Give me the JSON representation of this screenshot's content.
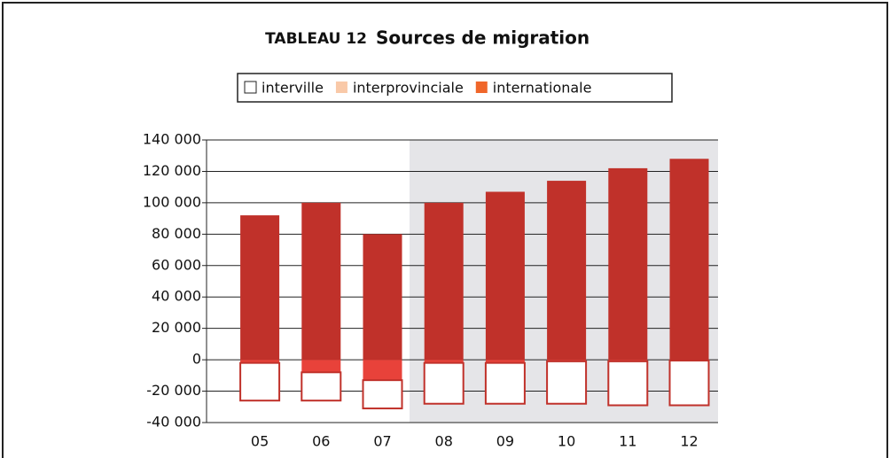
{
  "chart_data": {
    "type": "stacked_bar",
    "label": "TABLEAU 12",
    "title": "Sources de migration",
    "categories": [
      "05",
      "06",
      "07",
      "08",
      "09",
      "10",
      "11",
      "12"
    ],
    "series": [
      {
        "name": "interville",
        "color": "#ffffff",
        "legend_color": "#ffffff",
        "values": [
          -24000,
          -18000,
          -18000,
          -26000,
          -26000,
          -27000,
          -28000,
          -28500
        ]
      },
      {
        "name": "interprovinciale",
        "color": "#e8423a",
        "legend_color": "#f9c9a8",
        "values": [
          -2000,
          -8000,
          -13000,
          -2000,
          -2000,
          -1000,
          -1000,
          -500
        ]
      },
      {
        "name": "internationale",
        "color": "#c0312a",
        "legend_color": "#f0662a",
        "values": [
          92000,
          100000,
          80000,
          100000,
          107000,
          114000,
          122000,
          128000
        ]
      }
    ],
    "ylim": [
      -40000,
      140000
    ],
    "yticks": [
      {
        "value": -40000,
        "label": "-40 000"
      },
      {
        "value": -20000,
        "label": "-20 000"
      },
      0,
      {
        "value": 20000,
        "label": "20 000"
      },
      {
        "value": 40000,
        "label": "40 000"
      },
      {
        "value": 60000,
        "label": "60 000"
      },
      {
        "value": 80000,
        "label": "80 000"
      },
      {
        "value": 100000,
        "label": "100 000"
      },
      {
        "value": 120000,
        "label": "120 000"
      },
      {
        "value": 140000,
        "label": "140 000"
      }
    ],
    "grid": true
  }
}
